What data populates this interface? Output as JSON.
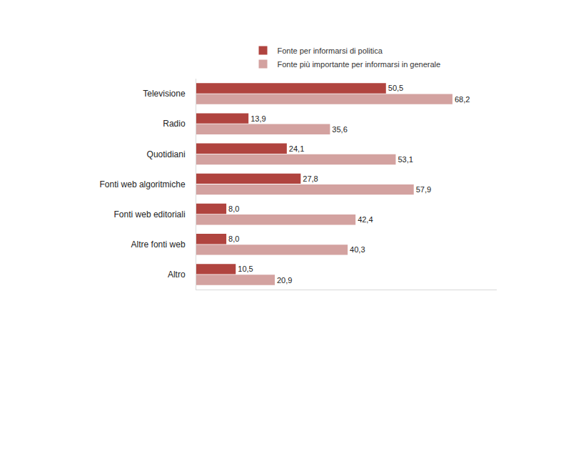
{
  "chart_data": {
    "type": "bar",
    "orientation": "horizontal",
    "categories": [
      "Televisione",
      "Radio",
      "Quotidiani",
      "Fonti web algoritmiche",
      "Fonti web editoriali",
      "Altre fonti web",
      "Altro"
    ],
    "series": [
      {
        "name": "Fonte per informarsi di politica",
        "color": "#b0443f",
        "values": [
          50.5,
          13.9,
          24.1,
          27.8,
          8.0,
          8.0,
          10.5
        ],
        "value_labels": [
          "50,5",
          "13,9",
          "24,1",
          "27,8",
          "8,0",
          "8,0",
          "10,5"
        ]
      },
      {
        "name": "Fonte più importante per informarsi in generale",
        "color": "#d3a2a0",
        "values": [
          68.2,
          35.6,
          53.1,
          57.9,
          42.4,
          40.3,
          20.9
        ],
        "value_labels": [
          "68,2",
          "35,6",
          "53,1",
          "57,9",
          "42,4",
          "40,3",
          "20,9"
        ]
      }
    ],
    "xlim": [
      0,
      80
    ],
    "data_labels": true,
    "tick_labels": "y",
    "grid": false,
    "legend": "top"
  }
}
